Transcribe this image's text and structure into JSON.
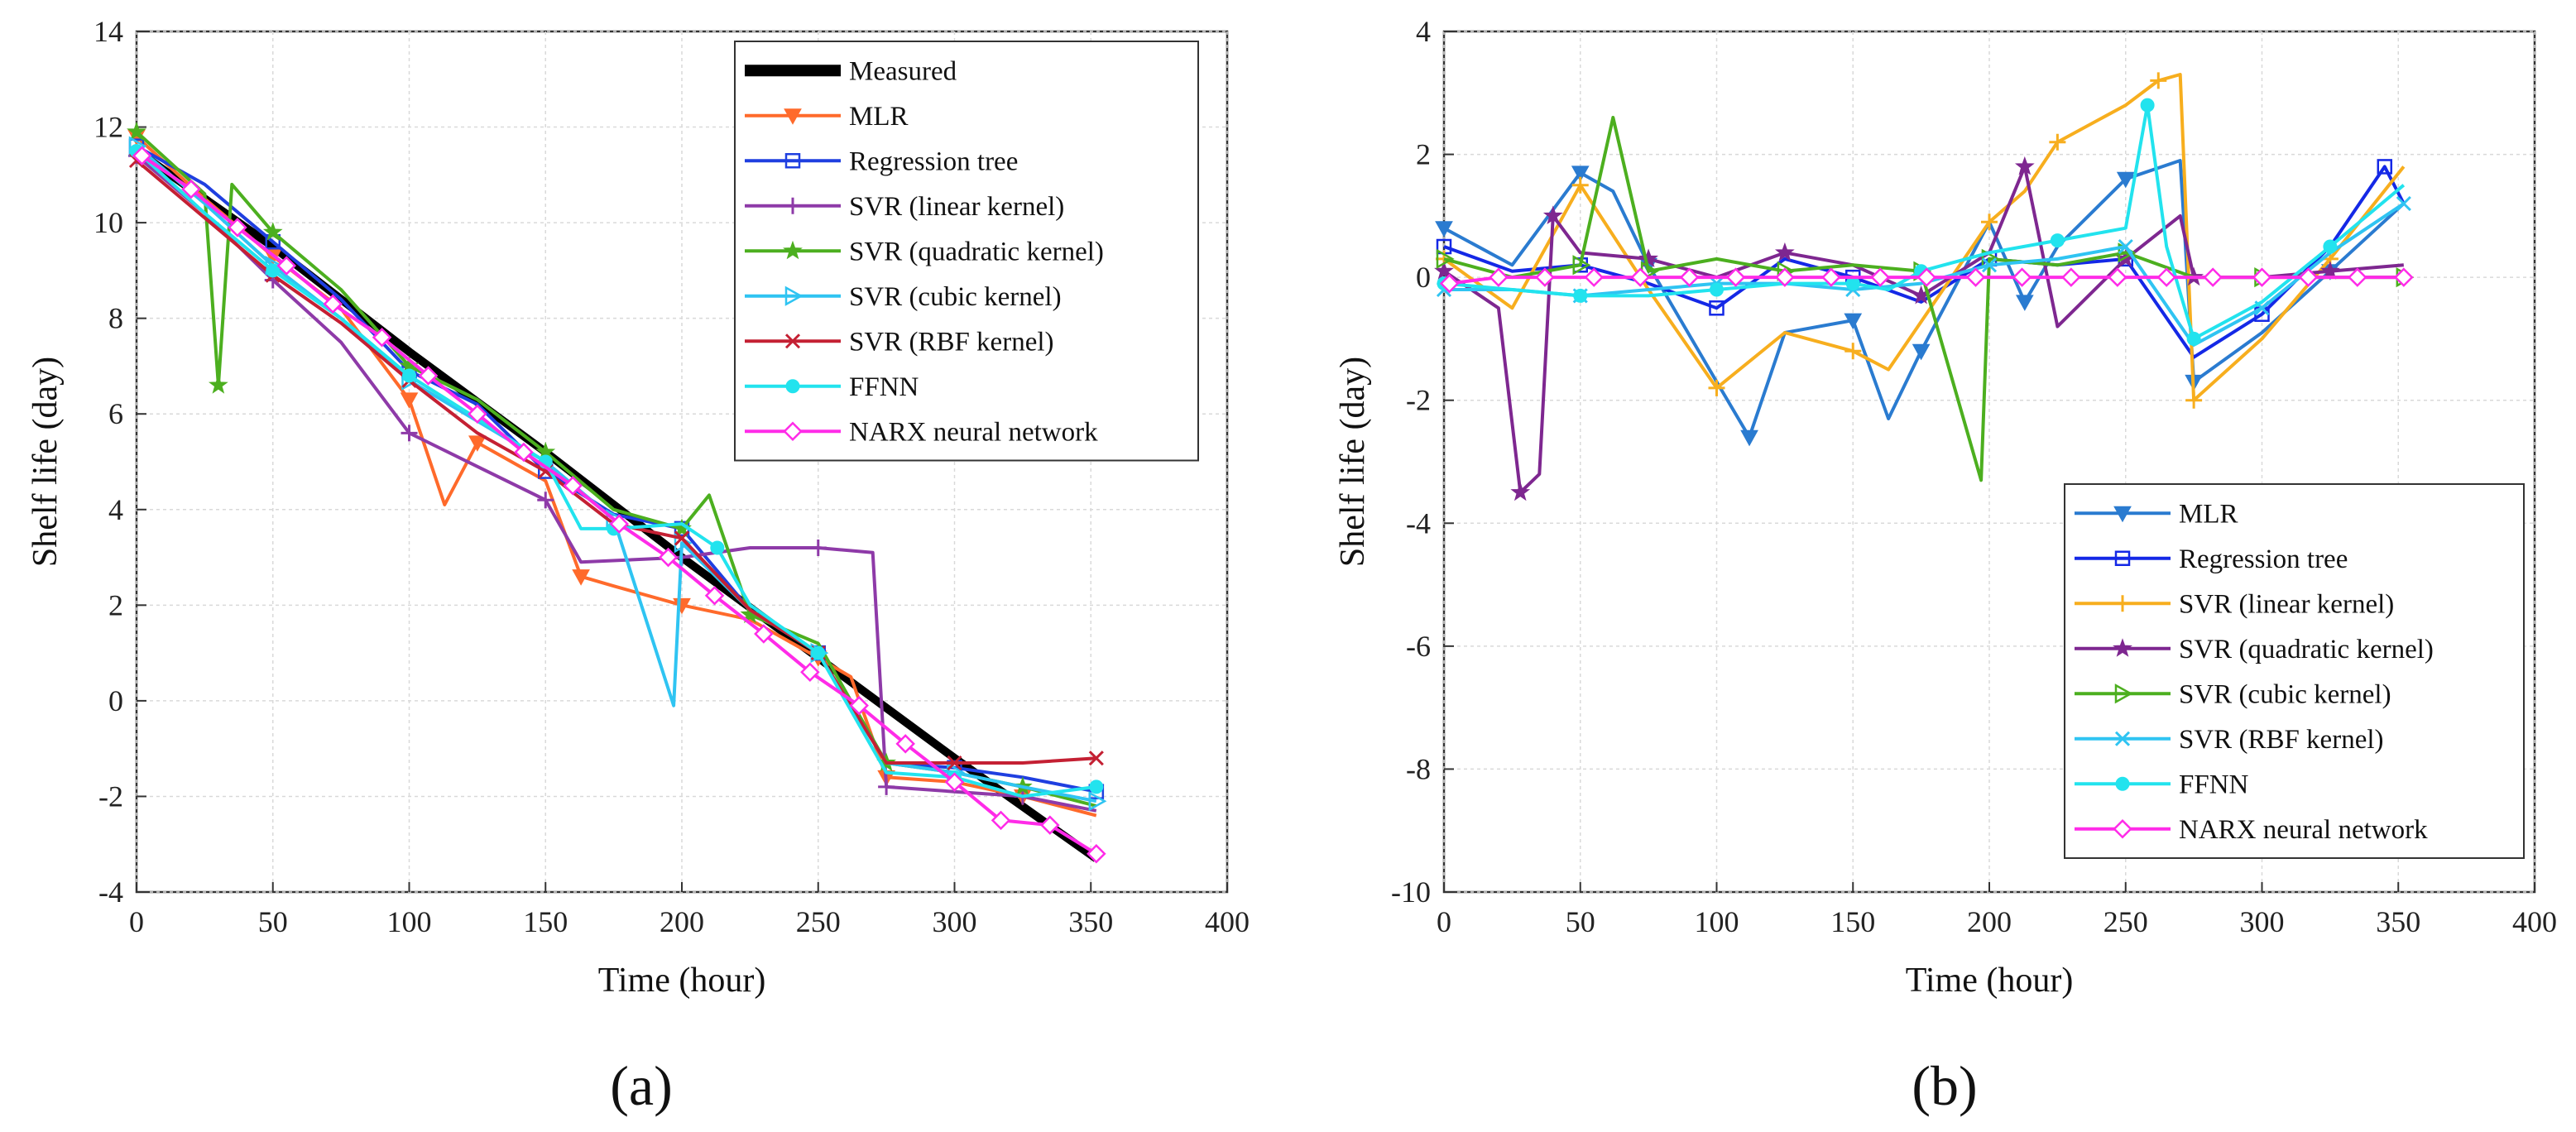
{
  "colors": {
    "Measured": "#000000",
    "MLR": "#FF6A2B",
    "Regression tree": "#1F3FE0",
    "SVR (linear kernel)": "#8E3AA8",
    "SVR (quadratic kernel)": "#4CAF1F",
    "SVR (cubic kernel)": "#2FC4F2",
    "SVR (RBF kernel)": "#C42033",
    "FFNN": "#22E3EE",
    "NARX neural network": "#FF2BE8",
    "b.MLR": "#2A7BD0",
    "b.Regression tree": "#1428E6",
    "b.SVR (linear kernel)": "#F7AE1E",
    "b.SVR (quadratic kernel)": "#7E2790",
    "b.SVR (cubic kernel)": "#4CAF1F",
    "b.SVR (RBF kernel)": "#2FC4F2",
    "b.FFNN": "#22E3EE",
    "b.NARX neural network": "#FF2BE8"
  },
  "chart_data": [
    {
      "type": "line",
      "panel_label": "(a)",
      "xlabel": "Time (hour)",
      "ylabel": "Shelf life (day)",
      "xlim": [
        0,
        400
      ],
      "ylim": [
        -4,
        14
      ],
      "xticks": [
        "0",
        "50",
        "100",
        "150",
        "200",
        "250",
        "300",
        "350",
        "400"
      ],
      "yticks": [
        "-4",
        "-2",
        "0",
        "2",
        "4",
        "6",
        "8",
        "10",
        "12",
        "14"
      ],
      "grid": true,
      "legend_position": "top-right",
      "series": [
        {
          "name": "Measured",
          "marker": "none",
          "x": [
            0,
            50,
            100,
            150,
            200,
            250,
            300,
            352
          ],
          "values": [
            11.5,
            9.5,
            7.3,
            5.2,
            3.0,
            0.9,
            -1.2,
            -3.3
          ]
        },
        {
          "name": "MLR",
          "marker": "triangle-down",
          "x": [
            0,
            25,
            50,
            75,
            100,
            113,
            125,
            150,
            163,
            175,
            200,
            225,
            250,
            262,
            275,
            300,
            325,
            352
          ],
          "values": [
            11.8,
            10.5,
            9.3,
            8.2,
            6.3,
            4.1,
            5.4,
            4.6,
            2.6,
            2.4,
            2.0,
            1.7,
            0.9,
            0.5,
            -1.6,
            -1.7,
            -2.0,
            -2.4
          ]
        },
        {
          "name": "Regression tree",
          "marker": "square",
          "x": [
            0,
            25,
            50,
            75,
            100,
            125,
            150,
            175,
            200,
            225,
            250,
            275,
            300,
            325,
            352
          ],
          "values": [
            11.6,
            10.8,
            9.6,
            8.4,
            6.9,
            6.2,
            4.8,
            3.9,
            3.6,
            1.9,
            1.0,
            -1.3,
            -1.4,
            -1.6,
            -1.9
          ]
        },
        {
          "name": "SVR (linear kernel)",
          "marker": "plus",
          "x": [
            0,
            25,
            50,
            75,
            100,
            125,
            150,
            163,
            200,
            225,
            250,
            270,
            275,
            300,
            325,
            352
          ],
          "values": [
            11.4,
            10.2,
            8.8,
            7.5,
            5.6,
            4.9,
            4.2,
            2.9,
            3.0,
            3.2,
            3.2,
            3.1,
            -1.8,
            -1.9,
            -2.0,
            -2.3
          ]
        },
        {
          "name": "SVR (quadratic kernel)",
          "marker": "star",
          "x": [
            0,
            25,
            30,
            35,
            50,
            75,
            100,
            125,
            150,
            175,
            200,
            210,
            225,
            250,
            275,
            300,
            325,
            352
          ],
          "values": [
            11.9,
            10.6,
            6.6,
            10.8,
            9.8,
            8.6,
            7.0,
            6.3,
            5.2,
            4.0,
            3.6,
            4.3,
            1.8,
            1.2,
            -1.3,
            -1.5,
            -1.8,
            -2.2
          ]
        },
        {
          "name": "SVR (cubic kernel)",
          "marker": "triangle-right",
          "x": [
            0,
            25,
            50,
            75,
            100,
            150,
            175,
            197,
            200,
            225,
            250,
            275,
            300,
            325,
            352
          ],
          "values": [
            11.6,
            10.4,
            9.1,
            8.0,
            6.7,
            5.0,
            3.8,
            -0.1,
            3.3,
            1.9,
            1.0,
            -1.3,
            -1.5,
            -1.8,
            -2.1
          ]
        },
        {
          "name": "SVR (RBF kernel)",
          "marker": "x",
          "x": [
            0,
            25,
            50,
            75,
            100,
            125,
            150,
            175,
            200,
            225,
            250,
            275,
            300,
            325,
            352
          ],
          "values": [
            11.3,
            10.1,
            8.9,
            7.9,
            6.7,
            5.6,
            4.8,
            3.7,
            3.4,
            1.9,
            1.0,
            -1.3,
            -1.3,
            -1.3,
            -1.2
          ]
        },
        {
          "name": "FFNN",
          "marker": "circle",
          "x": [
            0,
            25,
            50,
            75,
            100,
            125,
            150,
            163,
            175,
            200,
            213,
            225,
            250,
            275,
            300,
            325,
            352
          ],
          "values": [
            11.5,
            10.2,
            9.0,
            8.0,
            6.8,
            5.9,
            5.0,
            3.6,
            3.6,
            3.7,
            3.2,
            2.0,
            1.0,
            -1.5,
            -1.6,
            -2.0,
            -1.8
          ]
        },
        {
          "name": "NARX neural network",
          "marker": "diamond",
          "x": [
            2,
            20,
            37,
            55,
            72,
            90,
            107,
            125,
            142,
            160,
            177,
            195,
            212,
            230,
            247,
            265,
            282,
            300,
            317,
            335,
            352
          ],
          "values": [
            11.4,
            10.7,
            9.9,
            9.1,
            8.3,
            7.6,
            6.8,
            6.0,
            5.2,
            4.5,
            3.7,
            3.0,
            2.2,
            1.4,
            0.6,
            -0.1,
            -0.9,
            -1.7,
            -2.5,
            -2.6,
            -3.2
          ]
        }
      ]
    },
    {
      "type": "line",
      "panel_label": "(b)",
      "xlabel": "Time (hour)",
      "ylabel": "Shelf life (day)",
      "xlim": [
        0,
        400
      ],
      "ylim": [
        -10,
        4
      ],
      "xticks": [
        "0",
        "50",
        "100",
        "150",
        "200",
        "250",
        "300",
        "350",
        "400"
      ],
      "yticks": [
        "-10",
        "-8",
        "-6",
        "-4",
        "-2",
        "0",
        "2",
        "4"
      ],
      "grid": true,
      "legend_position": "bottom-right",
      "series": [
        {
          "name": "MLR",
          "marker": "triangle-down",
          "x": [
            0,
            25,
            50,
            62,
            75,
            100,
            112,
            125,
            150,
            163,
            175,
            200,
            213,
            225,
            250,
            270,
            275,
            300,
            325,
            352
          ],
          "values": [
            0.8,
            0.2,
            1.7,
            1.4,
            0.2,
            -1.7,
            -2.6,
            -0.9,
            -0.7,
            -2.3,
            -1.2,
            0.9,
            -0.4,
            0.5,
            1.6,
            1.9,
            -1.7,
            -0.9,
            0.1,
            1.2
          ]
        },
        {
          "name": "Regression tree",
          "marker": "square",
          "x": [
            0,
            25,
            50,
            75,
            100,
            125,
            150,
            175,
            200,
            225,
            250,
            275,
            300,
            325,
            345,
            352
          ],
          "values": [
            0.5,
            0.1,
            0.2,
            -0.1,
            -0.5,
            0.3,
            0.0,
            -0.4,
            0.3,
            0.2,
            0.3,
            -1.3,
            -0.6,
            0.5,
            1.8,
            1.2
          ]
        },
        {
          "name": "SVR (linear kernel)",
          "marker": "plus",
          "x": [
            0,
            25,
            50,
            75,
            100,
            125,
            150,
            163,
            200,
            213,
            225,
            250,
            262,
            270,
            275,
            300,
            325,
            352
          ],
          "values": [
            0.3,
            -0.5,
            1.5,
            -0.2,
            -1.8,
            -0.9,
            -1.2,
            -1.5,
            0.9,
            1.4,
            2.2,
            2.8,
            3.2,
            3.3,
            -2.0,
            -1.0,
            0.3,
            1.8
          ]
        },
        {
          "name": "SVR (quadratic kernel)",
          "marker": "star",
          "x": [
            0,
            20,
            28,
            35,
            40,
            50,
            75,
            100,
            125,
            150,
            175,
            200,
            213,
            225,
            250,
            270,
            275,
            300,
            325,
            352
          ],
          "values": [
            0.1,
            -0.5,
            -3.5,
            -3.2,
            1.0,
            0.4,
            0.3,
            0.0,
            0.4,
            0.2,
            -0.3,
            0.4,
            1.8,
            -0.8,
            0.3,
            1.0,
            0.0,
            0.0,
            0.1,
            0.2
          ]
        },
        {
          "name": "SVR (cubic kernel)",
          "marker": "triangle-right",
          "x": [
            0,
            25,
            50,
            62,
            75,
            100,
            125,
            150,
            175,
            197,
            200,
            225,
            250,
            275,
            300,
            325,
            352
          ],
          "values": [
            0.3,
            0.0,
            0.2,
            2.6,
            0.1,
            0.3,
            0.1,
            0.2,
            0.1,
            -3.3,
            0.3,
            0.2,
            0.4,
            0.0,
            0.0,
            0.0,
            0.0
          ]
        },
        {
          "name": "SVR (RBF kernel)",
          "marker": "x",
          "x": [
            0,
            25,
            50,
            75,
            100,
            125,
            150,
            175,
            200,
            225,
            250,
            275,
            300,
            325,
            352
          ],
          "values": [
            -0.2,
            -0.2,
            -0.3,
            -0.2,
            -0.1,
            -0.1,
            -0.2,
            -0.1,
            0.2,
            0.3,
            0.5,
            -1.1,
            -0.5,
            0.4,
            1.2
          ]
        },
        {
          "name": "FFNN",
          "marker": "circle",
          "x": [
            0,
            25,
            50,
            75,
            100,
            125,
            150,
            163,
            175,
            200,
            225,
            250,
            258,
            265,
            275,
            300,
            325,
            352
          ],
          "values": [
            -0.1,
            -0.2,
            -0.3,
            -0.3,
            -0.2,
            -0.1,
            -0.1,
            -0.2,
            0.1,
            0.4,
            0.6,
            0.8,
            2.8,
            0.5,
            -1.0,
            -0.4,
            0.5,
            1.5
          ]
        },
        {
          "name": "NARX neural network",
          "marker": "diamond",
          "x": [
            2,
            20,
            37,
            55,
            72,
            90,
            107,
            125,
            142,
            160,
            177,
            195,
            212,
            230,
            247,
            265,
            282,
            300,
            317,
            335,
            352
          ],
          "values": [
            -0.1,
            0.0,
            0.0,
            0.0,
            0.0,
            0.0,
            0.0,
            0.0,
            0.0,
            0.0,
            0.0,
            0.0,
            0.0,
            0.0,
            0.0,
            0.0,
            0.0,
            0.0,
            0.0,
            0.0,
            0.0
          ]
        }
      ]
    }
  ]
}
